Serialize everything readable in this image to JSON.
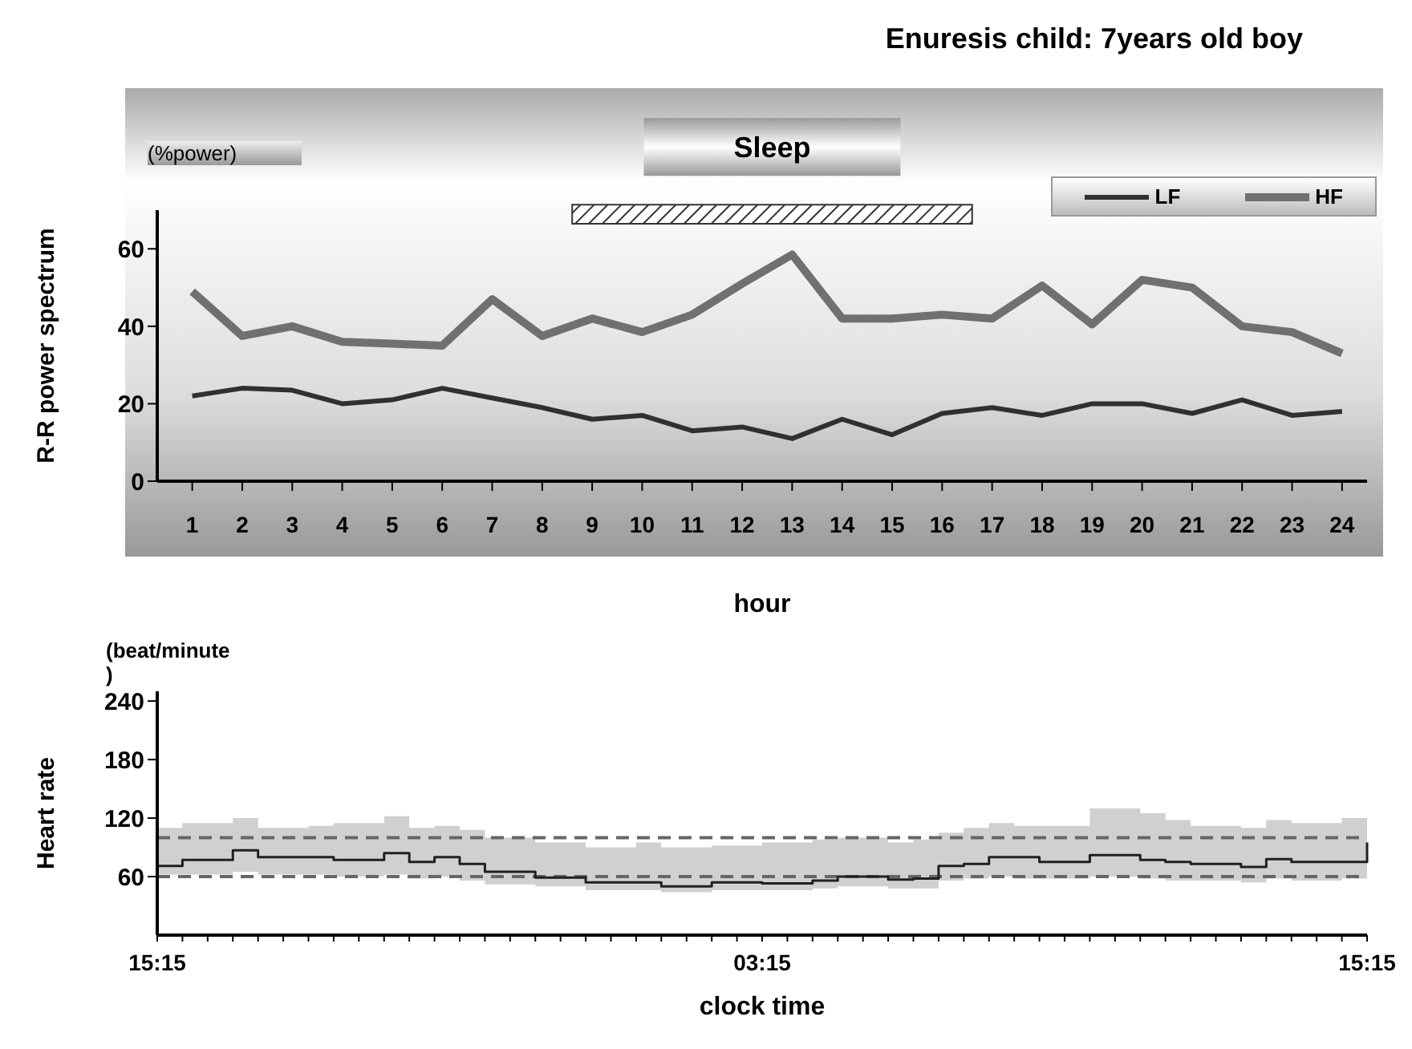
{
  "chart_data": [
    {
      "type": "line",
      "title": "Enuresis child: 7years old boy",
      "ylabel": "R-R power spectrum",
      "xlabel": "hour",
      "annotations": [
        "(%power)"
      ],
      "x": [
        1,
        2,
        3,
        4,
        5,
        6,
        7,
        8,
        9,
        10,
        11,
        12,
        13,
        14,
        15,
        16,
        17,
        18,
        19,
        20,
        21,
        22,
        23,
        24
      ],
      "xlim": [
        0.3,
        24.5
      ],
      "xticks": [
        1,
        2,
        3,
        4,
        5,
        6,
        7,
        8,
        9,
        10,
        11,
        12,
        13,
        14,
        15,
        16,
        17,
        18,
        19,
        20,
        21,
        22,
        23,
        24
      ],
      "ylim": [
        0,
        70
      ],
      "yticks": [
        0,
        20,
        40,
        60
      ],
      "legend": "top right",
      "marker": "none",
      "bands": [
        {
          "axis": "x",
          "from": 8.6,
          "to": 16.6,
          "label": "Sleep"
        }
      ],
      "series": [
        {
          "name": "LF",
          "color": "#303030",
          "values": [
            22,
            24,
            23.5,
            20,
            21,
            24,
            21.5,
            19,
            16,
            17,
            13,
            14,
            11,
            16,
            12,
            17.5,
            19,
            17,
            20,
            20,
            17.5,
            21,
            17,
            18
          ]
        },
        {
          "name": "HF",
          "color": "#707070",
          "values": [
            49,
            37.5,
            40,
            36,
            35.5,
            35,
            47,
            37.5,
            42,
            38.5,
            43,
            51,
            58.5,
            42,
            42,
            43,
            42,
            50.5,
            40.5,
            52,
            50,
            40,
            38.5,
            33
          ]
        }
      ]
    },
    {
      "type": "step",
      "ylabel": "Heart rate",
      "xlabel": "clock time",
      "annotations": [
        "(beat/minute\n)"
      ],
      "categories": [
        "15:15",
        null,
        null,
        null,
        null,
        null,
        null,
        null,
        null,
        null,
        null,
        null,
        null,
        null,
        null,
        null,
        null,
        null,
        null,
        null,
        null,
        null,
        null,
        null,
        "03:15",
        null,
        null,
        null,
        null,
        null,
        null,
        null,
        null,
        null,
        null,
        null,
        null,
        null,
        null,
        null,
        null,
        null,
        null,
        null,
        null,
        null,
        null,
        null,
        "15:15"
      ],
      "ylim": [
        0,
        250
      ],
      "yticks": [
        60,
        120,
        180,
        240
      ],
      "ref_lines": [
        {
          "axis": "y",
          "value": 100,
          "color": "#666666",
          "line_style": "dashed"
        },
        {
          "axis": "y",
          "value": 60,
          "color": "#666666",
          "line_style": "dashed"
        }
      ],
      "series": [
        {
          "color": "#202020",
          "values": [
            71,
            77,
            77,
            87,
            80,
            80,
            80,
            77,
            77,
            84,
            75,
            80,
            73,
            65,
            65,
            59,
            59,
            54,
            54,
            54,
            50,
            50,
            54,
            54,
            53,
            53,
            56,
            60,
            60,
            57,
            58,
            71,
            73,
            80,
            80,
            75,
            75,
            82,
            82,
            77,
            75,
            73,
            73,
            70,
            78,
            75,
            75,
            75,
            95
          ],
          "lower": [
            62,
            62,
            62,
            65,
            62,
            62,
            62,
            60,
            60,
            62,
            58,
            60,
            56,
            52,
            52,
            50,
            50,
            46,
            46,
            46,
            44,
            44,
            46,
            46,
            46,
            46,
            48,
            50,
            50,
            48,
            48,
            56,
            58,
            60,
            58,
            58,
            58,
            60,
            60,
            58,
            56,
            56,
            56,
            54,
            58,
            56,
            56,
            58,
            62
          ],
          "upper": [
            110,
            115,
            115,
            120,
            110,
            110,
            112,
            115,
            115,
            122,
            110,
            112,
            108,
            100,
            100,
            95,
            95,
            90,
            90,
            95,
            90,
            90,
            92,
            92,
            95,
            95,
            98,
            100,
            100,
            95,
            98,
            105,
            110,
            115,
            112,
            112,
            112,
            130,
            130,
            125,
            118,
            112,
            112,
            110,
            118,
            115,
            115,
            120,
            140
          ]
        }
      ]
    }
  ]
}
